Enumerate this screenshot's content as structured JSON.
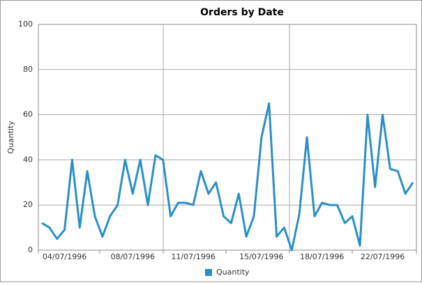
{
  "chart_data": {
    "type": "line",
    "title": "Orders by Date",
    "y_label": "Quantity",
    "categories": [
      null,
      null,
      null,
      "04/07/1996",
      null,
      null,
      null,
      null,
      null,
      null,
      null,
      null,
      "08/07/1996",
      null,
      null,
      null,
      null,
      null,
      null,
      null,
      "11/07/1996",
      null,
      null,
      null,
      null,
      null,
      null,
      null,
      null,
      "15/07/1996",
      null,
      null,
      null,
      null,
      null,
      null,
      null,
      "18/07/1996",
      null,
      null,
      null,
      null,
      null,
      null,
      null,
      "22/07/1996",
      null,
      null,
      null,
      null
    ],
    "series": [
      {
        "name": "Quantity",
        "color": "#2a8fc6",
        "values": [
          12,
          10,
          5,
          9,
          40,
          10,
          35,
          15,
          6,
          15,
          20,
          40,
          25,
          40,
          20,
          42,
          40,
          15,
          21,
          21,
          20,
          35,
          25,
          30,
          15,
          12,
          25,
          6,
          15,
          50,
          65,
          6,
          10,
          0,
          16,
          50,
          15,
          21,
          20,
          20,
          12,
          15,
          2,
          60,
          28,
          60,
          36,
          35,
          25,
          30
        ]
      }
    ],
    "ylim": [
      0,
      100
    ],
    "yticks": [
      0,
      20,
      40,
      60,
      80,
      100
    ],
    "grid": true,
    "legend": "bottom"
  }
}
